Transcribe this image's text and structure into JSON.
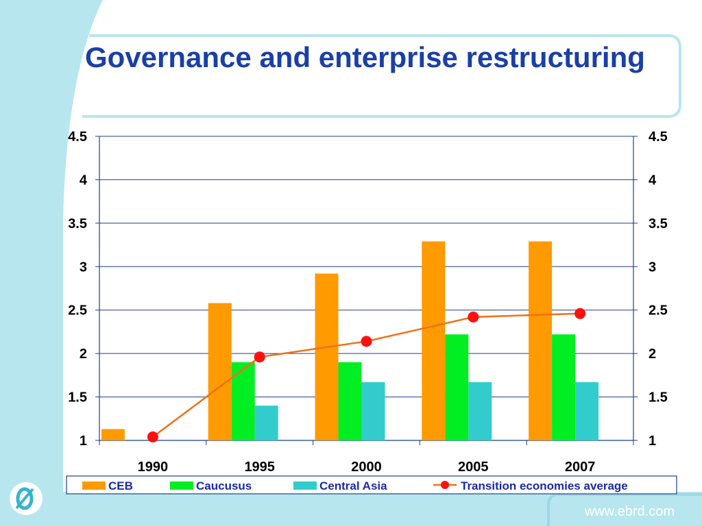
{
  "slide": {
    "title": "Governance and enterprise restructuring",
    "footer_url": "www.ebrd.com",
    "logo_icon": "ebrd-logo-icon"
  },
  "colors": {
    "title": "#1a3fa6",
    "background_band": "#b7e6ee",
    "grid": "#1a3f8a",
    "CEB": "#ff9a00",
    "Caucusus": "#00ee22",
    "Central Asia": "#33cccc",
    "Transition economies average": "#ff1010",
    "avg_line": "#f07018",
    "legend_text": "#1a2aa6"
  },
  "chart_data": {
    "type": "bar",
    "title": "",
    "xlabel": "",
    "ylabel": "",
    "categories": [
      "1990",
      "1995",
      "2000",
      "2005",
      "2007"
    ],
    "ylim": [
      1,
      4.5
    ],
    "yticks": [
      "1",
      "1.5",
      "2",
      "2.5",
      "3",
      "3.5",
      "4",
      "4.5"
    ],
    "y2ticks": [
      "1",
      "1.5",
      "2",
      "2.5",
      "3",
      "3.5",
      "4",
      "4.5"
    ],
    "grid": true,
    "legend_position": "bottom",
    "series": [
      {
        "name": "CEB",
        "type": "bar",
        "values": [
          1.13,
          2.58,
          2.92,
          3.29,
          3.29
        ]
      },
      {
        "name": "Caucusus",
        "type": "bar",
        "values": [
          null,
          1.9,
          1.9,
          2.22,
          2.22
        ]
      },
      {
        "name": "Central Asia",
        "type": "bar",
        "values": [
          null,
          1.4,
          1.67,
          1.67,
          1.67
        ]
      },
      {
        "name": "Transition economies average",
        "type": "line",
        "values": [
          1.04,
          1.96,
          2.14,
          2.42,
          2.46
        ]
      }
    ]
  }
}
